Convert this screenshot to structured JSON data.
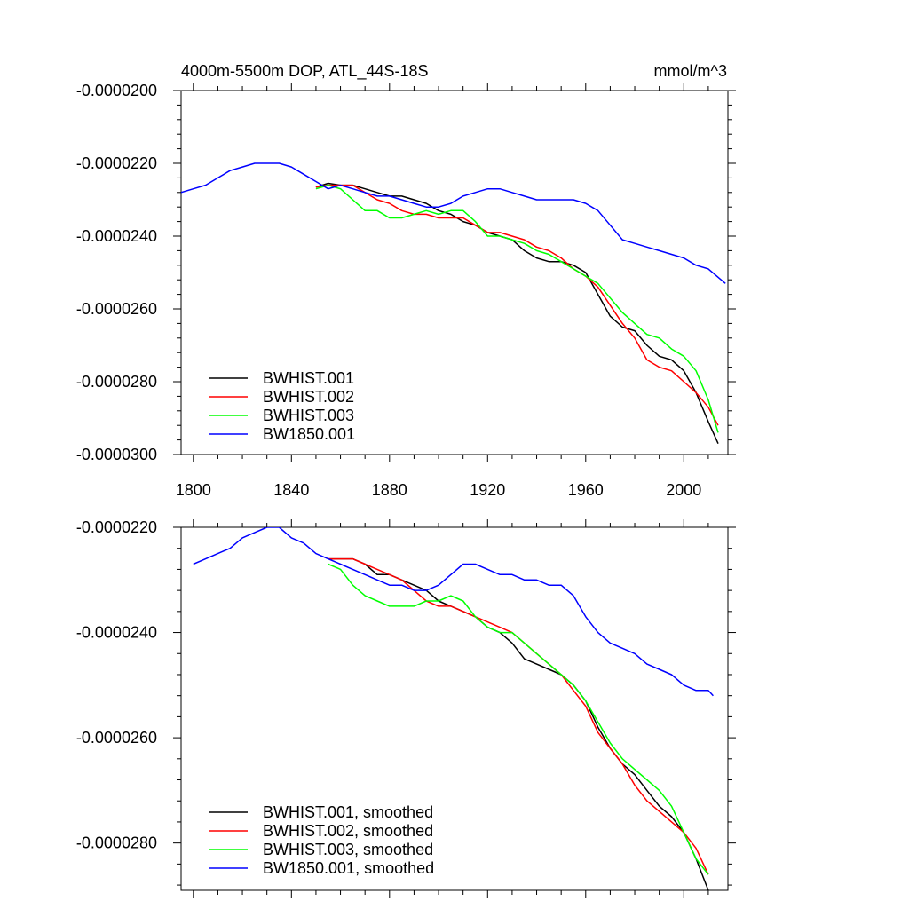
{
  "figure": {
    "title": "4000m-5500m DOP, ATL_44S-18S",
    "units": "mmol/m^3"
  },
  "colors": {
    "BWHIST.001": "#000000",
    "BWHIST.002": "#ff0000",
    "BWHIST.003": "#00ff00",
    "BW1850.001": "#0000ff"
  },
  "chart_data": [
    {
      "type": "line",
      "title": "4000m-5500m DOP, ATL_44S-18S",
      "units_label": "mmol/m^3",
      "xlabel": "",
      "ylabel": "",
      "xlim": [
        1795,
        2018
      ],
      "ylim": [
        -3e-05,
        -2e-05
      ],
      "xticks": [
        1800,
        1840,
        1880,
        1920,
        1960,
        2000
      ],
      "xtick_labels": [
        "1800",
        "1840",
        "1880",
        "1920",
        "1960",
        "2000"
      ],
      "yticks": [
        -2e-05,
        -2.2e-05,
        -2.4e-05,
        -2.6e-05,
        -2.8e-05,
        -3e-05
      ],
      "ytick_labels": [
        "-0.0000200",
        "-0.0000220",
        "-0.0000240",
        "-0.0000260",
        "-0.0000280",
        "-0.0000300"
      ],
      "legend": {
        "position": "bottom-left",
        "labels": [
          "BWHIST.001",
          "BWHIST.002",
          "BWHIST.003",
          "BW1850.001"
        ]
      },
      "series": [
        {
          "name": "BWHIST.001",
          "color": "#000000",
          "x": [
            1850,
            1855,
            1860,
            1865,
            1870,
            1875,
            1880,
            1885,
            1890,
            1895,
            1900,
            1905,
            1910,
            1915,
            1920,
            1925,
            1930,
            1935,
            1940,
            1945,
            1950,
            1955,
            1960,
            1965,
            1970,
            1975,
            1980,
            1985,
            1990,
            1995,
            2000,
            2005,
            2010,
            2014
          ],
          "y": [
            -2.265e-05,
            -2.255e-05,
            -2.26e-05,
            -2.26e-05,
            -2.27e-05,
            -2.28e-05,
            -2.29e-05,
            -2.29e-05,
            -2.3e-05,
            -2.31e-05,
            -2.33e-05,
            -2.34e-05,
            -2.36e-05,
            -2.37e-05,
            -2.39e-05,
            -2.4e-05,
            -2.41e-05,
            -2.44e-05,
            -2.46e-05,
            -2.47e-05,
            -2.47e-05,
            -2.48e-05,
            -2.5e-05,
            -2.56e-05,
            -2.62e-05,
            -2.65e-05,
            -2.66e-05,
            -2.7e-05,
            -2.73e-05,
            -2.74e-05,
            -2.77e-05,
            -2.83e-05,
            -2.91e-05,
            -2.97e-05
          ]
        },
        {
          "name": "BWHIST.002",
          "color": "#ff0000",
          "x": [
            1850,
            1855,
            1860,
            1865,
            1870,
            1875,
            1880,
            1885,
            1890,
            1895,
            1900,
            1905,
            1910,
            1915,
            1920,
            1925,
            1930,
            1935,
            1940,
            1945,
            1950,
            1955,
            1960,
            1965,
            1970,
            1975,
            1980,
            1985,
            1990,
            1995,
            2000,
            2005,
            2010,
            2014
          ],
          "y": [
            -2.265e-05,
            -2.26e-05,
            -2.26e-05,
            -2.26e-05,
            -2.28e-05,
            -2.3e-05,
            -2.31e-05,
            -2.33e-05,
            -2.34e-05,
            -2.34e-05,
            -2.35e-05,
            -2.35e-05,
            -2.35e-05,
            -2.37e-05,
            -2.39e-05,
            -2.39e-05,
            -2.4e-05,
            -2.41e-05,
            -2.43e-05,
            -2.44e-05,
            -2.46e-05,
            -2.49e-05,
            -2.51e-05,
            -2.54e-05,
            -2.59e-05,
            -2.64e-05,
            -2.68e-05,
            -2.74e-05,
            -2.76e-05,
            -2.77e-05,
            -2.8e-05,
            -2.83e-05,
            -2.87e-05,
            -2.92e-05
          ]
        },
        {
          "name": "BWHIST.003",
          "color": "#00ff00",
          "x": [
            1850,
            1855,
            1860,
            1865,
            1870,
            1875,
            1880,
            1885,
            1890,
            1895,
            1900,
            1905,
            1910,
            1915,
            1920,
            1925,
            1930,
            1935,
            1940,
            1945,
            1950,
            1955,
            1960,
            1965,
            1970,
            1975,
            1980,
            1985,
            1990,
            1995,
            2000,
            2005,
            2010,
            2014
          ],
          "y": [
            -2.27e-05,
            -2.26e-05,
            -2.27e-05,
            -2.3e-05,
            -2.33e-05,
            -2.33e-05,
            -2.35e-05,
            -2.35e-05,
            -2.34e-05,
            -2.33e-05,
            -2.34e-05,
            -2.33e-05,
            -2.33e-05,
            -2.36e-05,
            -2.4e-05,
            -2.4e-05,
            -2.41e-05,
            -2.42e-05,
            -2.44e-05,
            -2.45e-05,
            -2.47e-05,
            -2.49e-05,
            -2.51e-05,
            -2.53e-05,
            -2.57e-05,
            -2.61e-05,
            -2.64e-05,
            -2.67e-05,
            -2.68e-05,
            -2.71e-05,
            -2.73e-05,
            -2.77e-05,
            -2.85e-05,
            -2.94e-05
          ]
        },
        {
          "name": "BW1850.001",
          "color": "#0000ff",
          "x": [
            1795,
            1800,
            1805,
            1810,
            1815,
            1820,
            1825,
            1830,
            1835,
            1840,
            1845,
            1850,
            1855,
            1860,
            1865,
            1870,
            1875,
            1880,
            1885,
            1890,
            1895,
            1900,
            1905,
            1910,
            1915,
            1920,
            1925,
            1930,
            1935,
            1940,
            1945,
            1950,
            1955,
            1960,
            1965,
            1970,
            1975,
            1980,
            1985,
            1990,
            1995,
            2000,
            2005,
            2010,
            2017
          ],
          "y": [
            -2.28e-05,
            -2.27e-05,
            -2.26e-05,
            -2.24e-05,
            -2.22e-05,
            -2.21e-05,
            -2.2e-05,
            -2.2e-05,
            -2.2e-05,
            -2.21e-05,
            -2.23e-05,
            -2.25e-05,
            -2.27e-05,
            -2.26e-05,
            -2.27e-05,
            -2.28e-05,
            -2.29e-05,
            -2.29e-05,
            -2.3e-05,
            -2.31e-05,
            -2.32e-05,
            -2.32e-05,
            -2.31e-05,
            -2.29e-05,
            -2.28e-05,
            -2.27e-05,
            -2.27e-05,
            -2.28e-05,
            -2.29e-05,
            -2.3e-05,
            -2.3e-05,
            -2.3e-05,
            -2.3e-05,
            -2.31e-05,
            -2.33e-05,
            -2.37e-05,
            -2.41e-05,
            -2.42e-05,
            -2.43e-05,
            -2.44e-05,
            -2.45e-05,
            -2.46e-05,
            -2.48e-05,
            -2.49e-05,
            -2.53e-05
          ]
        }
      ]
    },
    {
      "type": "line",
      "title": "",
      "xlabel": "",
      "ylabel": "",
      "xlim": [
        1795,
        2018
      ],
      "ylim": [
        -2.89e-05,
        -2.2e-05
      ],
      "xticks": [
        1800,
        1840,
        1880,
        1920,
        1960,
        2000
      ],
      "yticks": [
        -2.2e-05,
        -2.4e-05,
        -2.6e-05,
        -2.8e-05
      ],
      "ytick_labels": [
        "-0.0000220",
        "-0.0000240",
        "-0.0000260",
        "-0.0000280"
      ],
      "legend": {
        "position": "bottom-left",
        "labels": [
          "BWHIST.001, smoothed",
          "BWHIST.002, smoothed",
          "BWHIST.003, smoothed",
          "BW1850.001, smoothed"
        ]
      },
      "series": [
        {
          "name": "BWHIST.001, smoothed",
          "color": "#000000",
          "x": [
            1855,
            1860,
            1865,
            1870,
            1875,
            1880,
            1885,
            1890,
            1895,
            1900,
            1905,
            1910,
            1915,
            1920,
            1925,
            1930,
            1935,
            1940,
            1945,
            1950,
            1955,
            1960,
            1965,
            1970,
            1975,
            1980,
            1985,
            1990,
            1995,
            2000,
            2005,
            2010
          ],
          "y": [
            -2.26e-05,
            -2.26e-05,
            -2.26e-05,
            -2.27e-05,
            -2.29e-05,
            -2.29e-05,
            -2.3e-05,
            -2.31e-05,
            -2.32e-05,
            -2.34e-05,
            -2.35e-05,
            -2.36e-05,
            -2.37e-05,
            -2.39e-05,
            -2.4e-05,
            -2.42e-05,
            -2.45e-05,
            -2.46e-05,
            -2.47e-05,
            -2.48e-05,
            -2.5e-05,
            -2.53e-05,
            -2.58e-05,
            -2.62e-05,
            -2.65e-05,
            -2.67e-05,
            -2.7e-05,
            -2.73e-05,
            -2.75e-05,
            -2.78e-05,
            -2.83e-05,
            -2.89e-05
          ]
        },
        {
          "name": "BWHIST.002, smoothed",
          "color": "#ff0000",
          "x": [
            1855,
            1860,
            1865,
            1870,
            1875,
            1880,
            1885,
            1890,
            1895,
            1900,
            1905,
            1910,
            1915,
            1920,
            1925,
            1930,
            1935,
            1940,
            1945,
            1950,
            1955,
            1960,
            1965,
            1970,
            1975,
            1980,
            1985,
            1990,
            1995,
            2000,
            2005,
            2010
          ],
          "y": [
            -2.26e-05,
            -2.26e-05,
            -2.26e-05,
            -2.27e-05,
            -2.28e-05,
            -2.29e-05,
            -2.3e-05,
            -2.32e-05,
            -2.34e-05,
            -2.35e-05,
            -2.35e-05,
            -2.36e-05,
            -2.37e-05,
            -2.38e-05,
            -2.39e-05,
            -2.4e-05,
            -2.42e-05,
            -2.44e-05,
            -2.46e-05,
            -2.48e-05,
            -2.51e-05,
            -2.54e-05,
            -2.59e-05,
            -2.62e-05,
            -2.65e-05,
            -2.69e-05,
            -2.72e-05,
            -2.74e-05,
            -2.76e-05,
            -2.78e-05,
            -2.81e-05,
            -2.86e-05
          ]
        },
        {
          "name": "BWHIST.003, smoothed",
          "color": "#00ff00",
          "x": [
            1855,
            1860,
            1865,
            1870,
            1875,
            1880,
            1885,
            1890,
            1895,
            1900,
            1905,
            1910,
            1915,
            1920,
            1925,
            1930,
            1935,
            1940,
            1945,
            1950,
            1955,
            1960,
            1965,
            1970,
            1975,
            1980,
            1985,
            1990,
            1995,
            2000,
            2005,
            2010
          ],
          "y": [
            -2.27e-05,
            -2.28e-05,
            -2.31e-05,
            -2.33e-05,
            -2.34e-05,
            -2.35e-05,
            -2.35e-05,
            -2.35e-05,
            -2.34e-05,
            -2.34e-05,
            -2.33e-05,
            -2.34e-05,
            -2.37e-05,
            -2.39e-05,
            -2.4e-05,
            -2.4e-05,
            -2.42e-05,
            -2.44e-05,
            -2.46e-05,
            -2.48e-05,
            -2.5e-05,
            -2.53e-05,
            -2.57e-05,
            -2.61e-05,
            -2.64e-05,
            -2.66e-05,
            -2.68e-05,
            -2.7e-05,
            -2.73e-05,
            -2.78e-05,
            -2.83e-05,
            -2.86e-05
          ]
        },
        {
          "name": "BW1850.001, smoothed",
          "color": "#0000ff",
          "x": [
            1800,
            1805,
            1810,
            1815,
            1820,
            1825,
            1830,
            1835,
            1840,
            1845,
            1850,
            1855,
            1860,
            1865,
            1870,
            1875,
            1880,
            1885,
            1890,
            1895,
            1900,
            1905,
            1910,
            1915,
            1920,
            1925,
            1930,
            1935,
            1940,
            1945,
            1950,
            1955,
            1960,
            1965,
            1970,
            1975,
            1980,
            1985,
            1990,
            1995,
            2000,
            2005,
            2010,
            2012
          ],
          "y": [
            -2.27e-05,
            -2.26e-05,
            -2.25e-05,
            -2.24e-05,
            -2.22e-05,
            -2.21e-05,
            -2.2e-05,
            -2.2e-05,
            -2.22e-05,
            -2.23e-05,
            -2.25e-05,
            -2.26e-05,
            -2.27e-05,
            -2.28e-05,
            -2.29e-05,
            -2.3e-05,
            -2.31e-05,
            -2.31e-05,
            -2.32e-05,
            -2.32e-05,
            -2.31e-05,
            -2.29e-05,
            -2.27e-05,
            -2.27e-05,
            -2.28e-05,
            -2.29e-05,
            -2.29e-05,
            -2.3e-05,
            -2.3e-05,
            -2.31e-05,
            -2.31e-05,
            -2.33e-05,
            -2.37e-05,
            -2.4e-05,
            -2.42e-05,
            -2.43e-05,
            -2.44e-05,
            -2.46e-05,
            -2.47e-05,
            -2.48e-05,
            -2.5e-05,
            -2.51e-05,
            -2.51e-05,
            -2.52e-05
          ]
        }
      ]
    }
  ]
}
